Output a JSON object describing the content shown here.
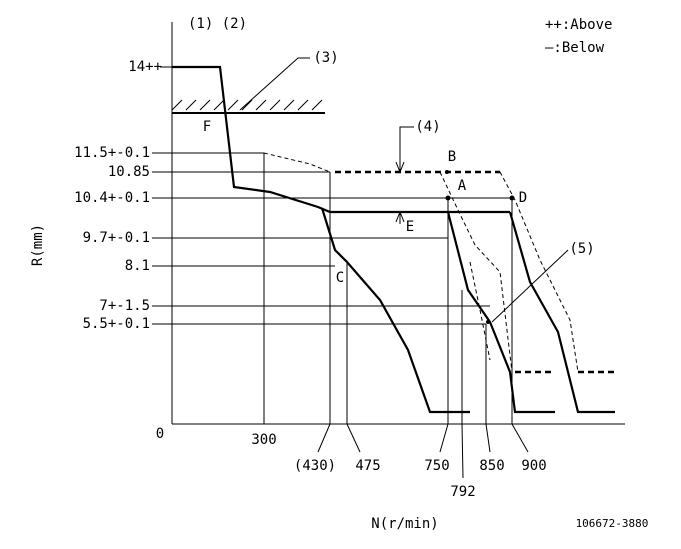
{
  "header": {
    "left": "(1) (2)",
    "legend_above": "++:Above",
    "legend_below": "—:Below"
  },
  "y_axis": {
    "title": "R(mm)",
    "labels": [
      "14++",
      "11.5+-0.1",
      "10.85",
      "10.4+-0.1",
      "9.7+-0.1",
      "8.1",
      "7+-1.5",
      "5.5+-0.1"
    ]
  },
  "x_axis": {
    "title": "N(r/min)",
    "labels": [
      "0",
      "300",
      "(430)",
      "475",
      "750",
      "792",
      "850",
      "900"
    ]
  },
  "callouts": [
    "(3)",
    "(4)",
    "(5)"
  ],
  "points": [
    "F",
    "B",
    "A",
    "D",
    "E",
    "C"
  ],
  "code": "106672-3880"
}
